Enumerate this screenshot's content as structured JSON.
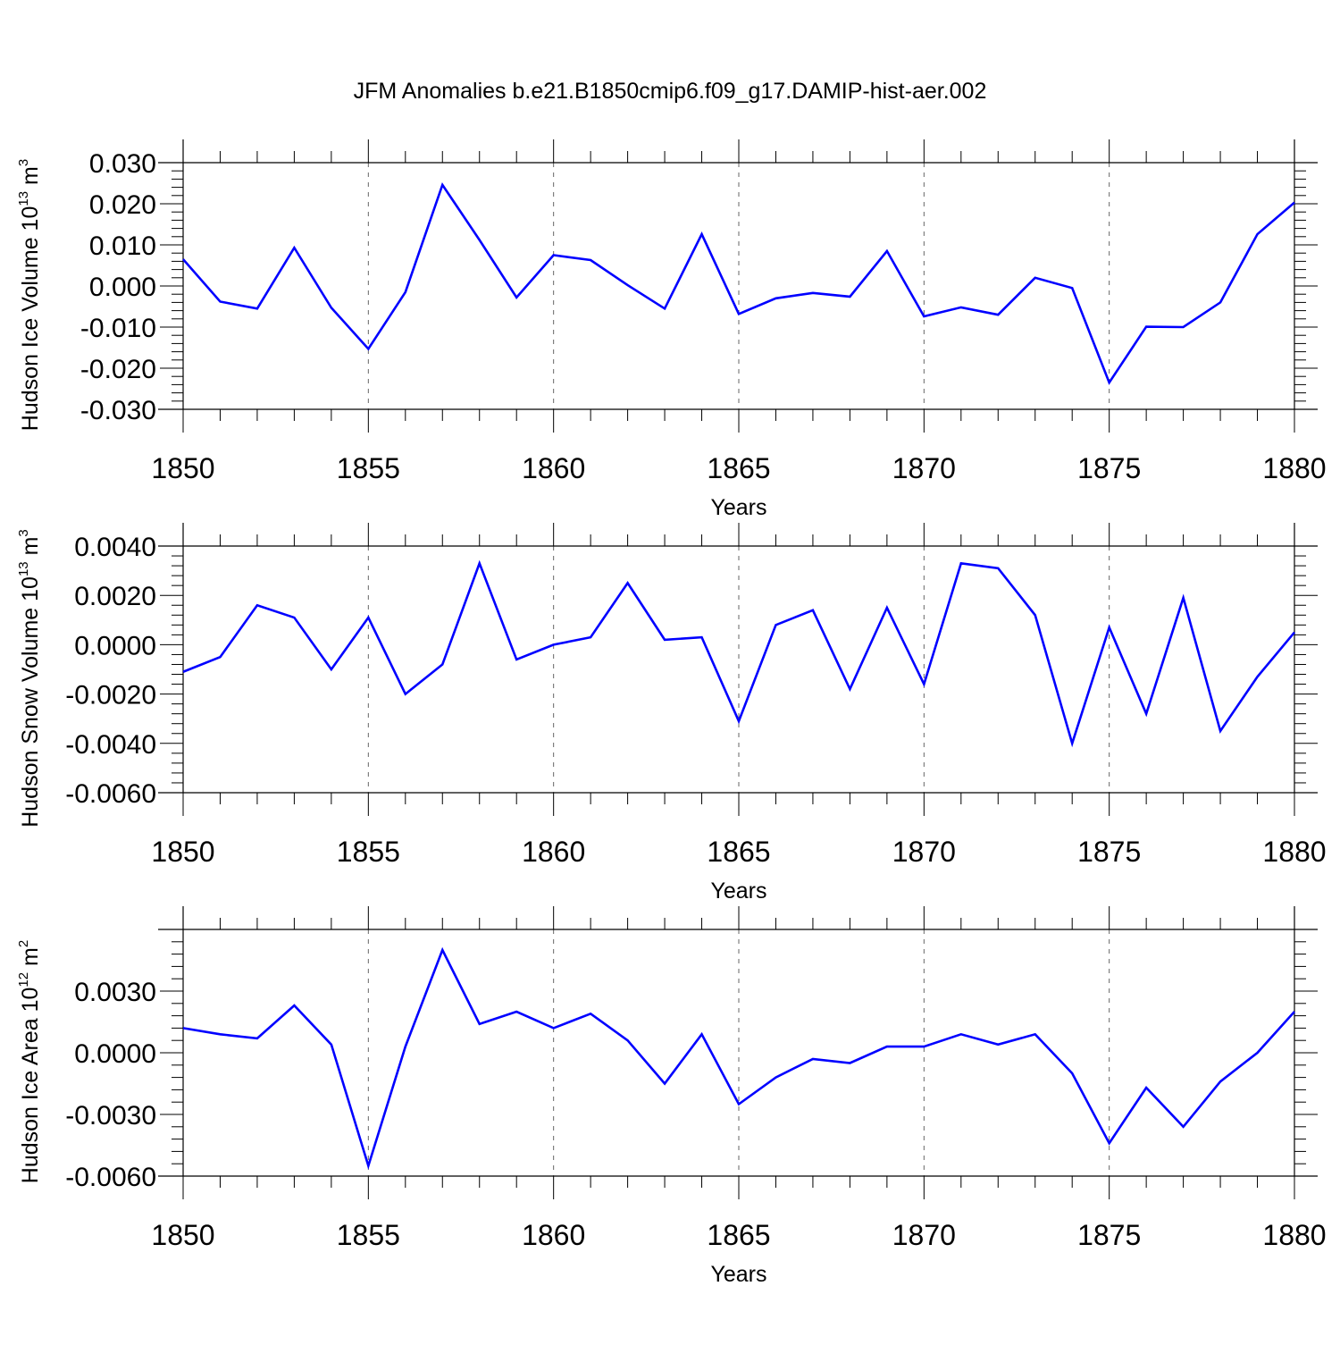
{
  "title": "JFM Anomalies b.e21.B1850cmip6.f09_g17.DAMIP-hist-aer.002",
  "line_color": "#0000ff",
  "chart_data": [
    {
      "type": "line",
      "ylabel_main": "Hudson Ice Volume 10",
      "ylabel_exp": "13",
      "ylabel_unit": "m",
      "ylabel_unit_exp": "3",
      "xlabel": "Years",
      "xlim": [
        1850,
        1880
      ],
      "ylim": [
        -0.03,
        0.03
      ],
      "y_ticks": [
        -0.03,
        -0.02,
        -0.01,
        0.0,
        0.01,
        0.02,
        0.03
      ],
      "y_tick_labels": [
        "-0.030",
        "-0.020",
        "-0.010",
        "0.000",
        "0.010",
        "0.020",
        "0.030"
      ],
      "x_ticks": [
        1850,
        1855,
        1860,
        1865,
        1870,
        1875,
        1880
      ],
      "x_tick_labels": [
        "1850",
        "1855",
        "1860",
        "1865",
        "1870",
        "1875",
        "1880"
      ],
      "series": [
        {
          "name": "Hudson Ice Volume",
          "x": [
            1850,
            1851,
            1852,
            1853,
            1854,
            1855,
            1856,
            1857,
            1858,
            1859,
            1860,
            1861,
            1862,
            1863,
            1864,
            1865,
            1866,
            1867,
            1868,
            1869,
            1870,
            1871,
            1872,
            1873,
            1874,
            1875,
            1876,
            1877,
            1878,
            1879,
            1880
          ],
          "values": [
            0.0065,
            -0.0038,
            -0.0055,
            0.0093,
            -0.0053,
            -0.0153,
            -0.0015,
            0.0246,
            0.0112,
            -0.0028,
            0.0075,
            0.0063,
            0.0002,
            -0.0055,
            0.0126,
            -0.0068,
            -0.003,
            -0.0017,
            -0.0026,
            0.0085,
            -0.0074,
            -0.0052,
            -0.007,
            0.002,
            -0.0005,
            -0.0235,
            -0.0099,
            -0.01,
            -0.004,
            0.0126,
            0.0203
          ]
        }
      ]
    },
    {
      "type": "line",
      "ylabel_main": "Hudson Snow Volume 10",
      "ylabel_exp": "13",
      "ylabel_unit": "m",
      "ylabel_unit_exp": "3",
      "xlabel": "Years",
      "xlim": [
        1850,
        1880
      ],
      "ylim": [
        -0.006,
        0.004
      ],
      "y_ticks": [
        -0.006,
        -0.004,
        -0.002,
        0.0,
        0.002,
        0.004
      ],
      "y_tick_labels": [
        "-0.0060",
        "-0.0040",
        "-0.0020",
        "0.0000",
        "0.0020",
        "0.0040"
      ],
      "x_ticks": [
        1850,
        1855,
        1860,
        1865,
        1870,
        1875,
        1880
      ],
      "x_tick_labels": [
        "1850",
        "1855",
        "1860",
        "1865",
        "1870",
        "1875",
        "1880"
      ],
      "series": [
        {
          "name": "Hudson Snow Volume",
          "x": [
            1850,
            1851,
            1852,
            1853,
            1854,
            1855,
            1856,
            1857,
            1858,
            1859,
            1860,
            1861,
            1862,
            1863,
            1864,
            1865,
            1866,
            1867,
            1868,
            1869,
            1870,
            1871,
            1872,
            1873,
            1874,
            1875,
            1876,
            1877,
            1878,
            1879,
            1880
          ],
          "values": [
            -0.0011,
            -0.0005,
            0.0016,
            0.0011,
            -0.001,
            0.0011,
            -0.002,
            -0.0008,
            0.0033,
            -0.0006,
            0.0,
            0.0003,
            0.0025,
            0.0002,
            0.0003,
            -0.0031,
            0.0008,
            0.0014,
            -0.0018,
            0.0015,
            -0.0016,
            0.0033,
            0.0031,
            0.0012,
            -0.004,
            0.0007,
            -0.0028,
            0.0019,
            -0.0035,
            -0.0013,
            0.0005
          ]
        }
      ]
    },
    {
      "type": "line",
      "ylabel_main": "Hudson Ice Area 10",
      "ylabel_exp": "12",
      "ylabel_unit": "m",
      "ylabel_unit_exp": "2",
      "xlabel": "Years",
      "xlim": [
        1850,
        1880
      ],
      "ylim": [
        -0.006,
        0.006
      ],
      "y_ticks": [
        -0.006,
        -0.003,
        0.0,
        0.003
      ],
      "y_tick_labels": [
        "-0.0060",
        "-0.0030",
        "0.0000",
        "0.0030"
      ],
      "x_ticks": [
        1850,
        1855,
        1860,
        1865,
        1870,
        1875,
        1880
      ],
      "x_tick_labels": [
        "1850",
        "1855",
        "1860",
        "1865",
        "1870",
        "1875",
        "1880"
      ],
      "series": [
        {
          "name": "Hudson Ice Area",
          "x": [
            1850,
            1851,
            1852,
            1853,
            1854,
            1855,
            1856,
            1857,
            1858,
            1859,
            1860,
            1861,
            1862,
            1863,
            1864,
            1865,
            1866,
            1867,
            1868,
            1869,
            1870,
            1871,
            1872,
            1873,
            1874,
            1875,
            1876,
            1877,
            1878,
            1879,
            1880
          ],
          "values": [
            0.0012,
            0.0009,
            0.0007,
            0.0023,
            0.0004,
            -0.0055,
            0.0003,
            0.005,
            0.0014,
            0.002,
            0.0012,
            0.0019,
            0.0006,
            -0.0015,
            0.0009,
            -0.0025,
            -0.0012,
            -0.0003,
            -0.0005,
            0.0003,
            0.0003,
            0.0009,
            0.0004,
            0.0009,
            -0.001,
            -0.0044,
            -0.0017,
            -0.0036,
            -0.0014,
            0.0,
            0.002
          ]
        }
      ]
    }
  ]
}
